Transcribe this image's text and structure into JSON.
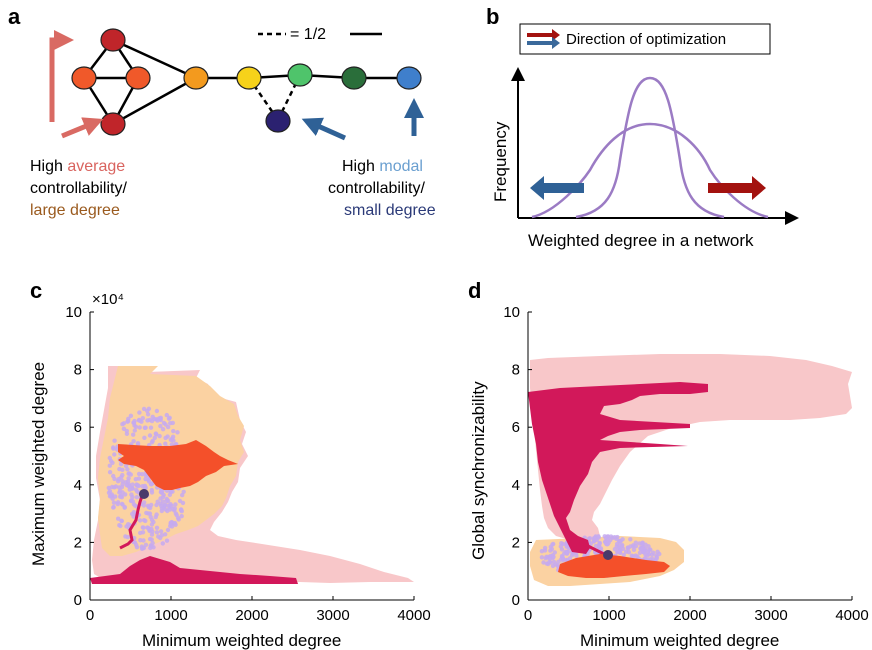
{
  "panels": {
    "a": {
      "letter": "a",
      "legend_label": "= 1/2",
      "left_caption": {
        "line1_prefix": "High ",
        "line1_emph": "average",
        "line2": "controllability/",
        "line3": "large degree"
      },
      "right_caption": {
        "line1_prefix": "High ",
        "line1_emph": "modal",
        "line2": "controllability/",
        "line3": "small degree"
      },
      "colors": {
        "average": "#d9645f",
        "large_degree": "#9a5a1e",
        "modal": "#6a9fd0",
        "small_degree": "#2b3a78",
        "arrow_red": "#d96a63",
        "arrow_blue": "#2f6196"
      },
      "nodes": [
        {
          "id": "n1",
          "color": "#c0252a"
        },
        {
          "id": "n2",
          "color": "#f0592a"
        },
        {
          "id": "n3",
          "color": "#f0592a"
        },
        {
          "id": "n4",
          "color": "#c0252a"
        },
        {
          "id": "n5",
          "color": "#f39a1e"
        },
        {
          "id": "n6",
          "color": "#f6d21a"
        },
        {
          "id": "n7",
          "color": "#4fc46b"
        },
        {
          "id": "n8",
          "color": "#2a6e3a"
        },
        {
          "id": "n9",
          "color": "#3f7fcc"
        },
        {
          "id": "n10",
          "color": "#2b2170"
        }
      ]
    },
    "b": {
      "letter": "b",
      "legend_text": "Direction of optimization",
      "ylabel": "Frequency",
      "xlabel": "Weighted degree in a network",
      "colors": {
        "curve": "#9b7bc4",
        "arrow_red": "#a3120f",
        "arrow_blue": "#2f6196"
      }
    },
    "c": {
      "letter": "c",
      "xlabel": "Minimum weighted degree",
      "ylabel": "Maximum weighted degree",
      "exponent": "×10⁴",
      "xticks": [
        "0",
        "1000",
        "2000",
        "3000",
        "4000"
      ],
      "yticks": [
        "0",
        "2",
        "4",
        "6",
        "8",
        "10"
      ]
    },
    "d": {
      "letter": "d",
      "xlabel": "Minimum weighted degree",
      "ylabel": "Global synchronizability",
      "xticks": [
        "0",
        "1000",
        "2000",
        "3000",
        "4000"
      ],
      "yticks": [
        "0",
        "2",
        "4",
        "6",
        "8",
        "10"
      ]
    }
  },
  "chart_colors": {
    "pink_band": "#f8c7c9",
    "peach_band": "#fbd2a2",
    "lavender_dots": "#c6aaf0",
    "orange_red": "#f4502a",
    "magenta": "#d2185a",
    "dark_dot": "#4a3a6a"
  },
  "chart_data": [
    {
      "type": "scatter",
      "xlabel": "Minimum weighted degree",
      "ylabel": "Maximum weighted degree",
      "xlim": [
        0,
        4000
      ],
      "ylim": [
        0,
        10
      ],
      "y_multiplier": "×10⁴",
      "points_center": [
        650,
        3.5
      ]
    },
    {
      "type": "scatter",
      "xlabel": "Minimum weighted degree",
      "ylabel": "Global synchronizability",
      "xlim": [
        0,
        4000
      ],
      "ylim": [
        0,
        10
      ],
      "points_center": [
        650,
        1.4
      ]
    }
  ]
}
